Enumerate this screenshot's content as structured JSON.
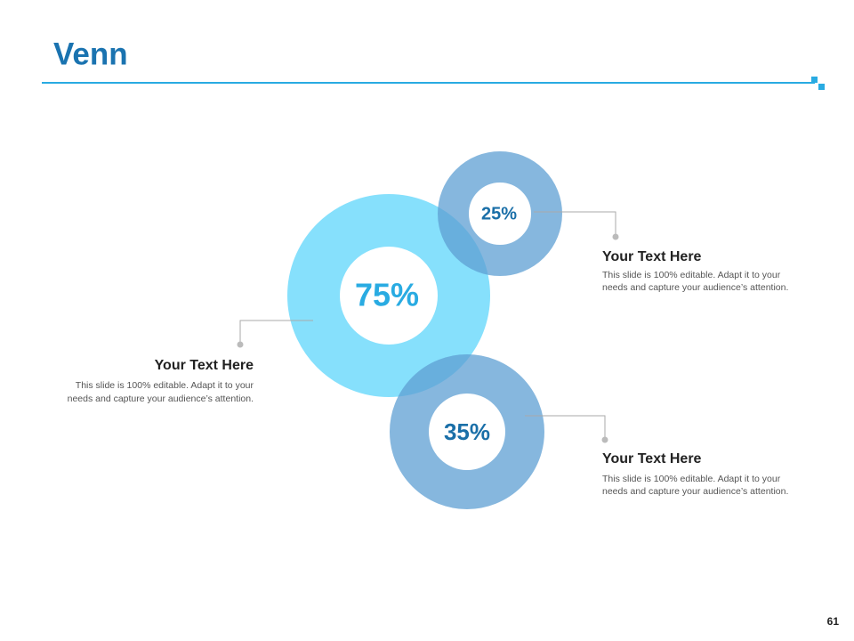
{
  "header": {
    "title": "Venn"
  },
  "circles": [
    {
      "label": "75%"
    },
    {
      "label": "25%"
    },
    {
      "label": "35%"
    }
  ],
  "callouts": [
    {
      "heading": "Your Text Here",
      "body": [
        "This slide is 100% editable. Adapt it to your",
        "needs and capture your audience’s attention."
      ]
    },
    {
      "heading": "Your Text Here",
      "body": [
        "This slide is 100% editable. Adapt it to your",
        "needs and capture your audience’s attention."
      ]
    },
    {
      "heading": "Your Text Here",
      "body": [
        "This slide is 100% editable. Adapt it to your",
        "needs and capture your audience’s attention."
      ]
    }
  ],
  "footer": {
    "page_number": "61"
  }
}
